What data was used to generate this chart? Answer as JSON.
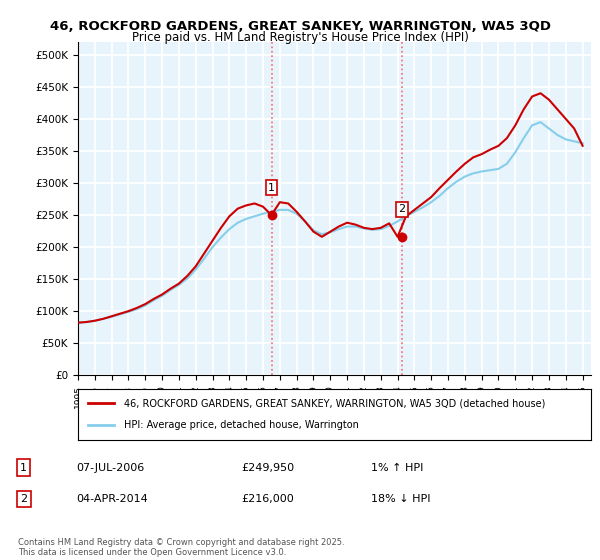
{
  "title": "46, ROCKFORD GARDENS, GREAT SANKEY, WARRINGTON, WA5 3QD",
  "subtitle": "Price paid vs. HM Land Registry's House Price Index (HPI)",
  "ylabel": "",
  "ylim": [
    0,
    520000
  ],
  "yticks": [
    0,
    50000,
    100000,
    150000,
    200000,
    250000,
    300000,
    350000,
    400000,
    450000,
    500000
  ],
  "ytick_labels": [
    "£0",
    "£50K",
    "£100K",
    "£150K",
    "£200K",
    "£250K",
    "£300K",
    "£350K",
    "£400K",
    "£450K",
    "£500K"
  ],
  "xlim_start": 1995.0,
  "xlim_end": 2025.5,
  "hpi_color": "#87CEEB",
  "price_color": "#CC0000",
  "background_color": "#E8F4FC",
  "grid_color": "#FFFFFF",
  "sale1_x": 2006.52,
  "sale1_y": 249950,
  "sale2_x": 2014.25,
  "sale2_y": 216000,
  "vline_color": "#FF6666",
  "legend_label_price": "46, ROCKFORD GARDENS, GREAT SANKEY, WARRINGTON, WA5 3QD (detached house)",
  "legend_label_hpi": "HPI: Average price, detached house, Warrington",
  "annotation1_label": "1",
  "annotation2_label": "2",
  "table_row1": "1    07-JUL-2006    £249,950    1% ↑ HPI",
  "table_row2": "2    04-APR-2014    £216,000    18% ↓ HPI",
  "footer": "Contains HM Land Registry data © Crown copyright and database right 2025.\nThis data is licensed under the Open Government Licence v3.0.",
  "hpi_data_x": [
    1995.0,
    1995.5,
    1996.0,
    1996.5,
    1997.0,
    1997.5,
    1998.0,
    1998.5,
    1999.0,
    1999.5,
    2000.0,
    2000.5,
    2001.0,
    2001.5,
    2002.0,
    2002.5,
    2003.0,
    2003.5,
    2004.0,
    2004.5,
    2005.0,
    2005.5,
    2006.0,
    2006.5,
    2007.0,
    2007.5,
    2008.0,
    2008.5,
    2009.0,
    2009.5,
    2010.0,
    2010.5,
    2011.0,
    2011.5,
    2012.0,
    2012.5,
    2013.0,
    2013.5,
    2014.0,
    2014.5,
    2015.0,
    2015.5,
    2016.0,
    2016.5,
    2017.0,
    2017.5,
    2018.0,
    2018.5,
    2019.0,
    2019.5,
    2020.0,
    2020.5,
    2021.0,
    2021.5,
    2022.0,
    2022.5,
    2023.0,
    2023.5,
    2024.0,
    2024.5,
    2025.0
  ],
  "hpi_data_y": [
    82000,
    83000,
    85000,
    88000,
    91000,
    95000,
    99000,
    103000,
    109000,
    117000,
    124000,
    133000,
    141000,
    151000,
    165000,
    182000,
    200000,
    215000,
    228000,
    238000,
    244000,
    248000,
    252000,
    255000,
    258000,
    258000,
    252000,
    240000,
    226000,
    220000,
    223000,
    228000,
    232000,
    232000,
    229000,
    227000,
    228000,
    233000,
    240000,
    248000,
    255000,
    262000,
    270000,
    280000,
    292000,
    302000,
    310000,
    315000,
    318000,
    320000,
    322000,
    330000,
    348000,
    370000,
    390000,
    395000,
    385000,
    375000,
    368000,
    365000,
    362000
  ],
  "price_data_x": [
    1995.0,
    1995.5,
    1996.0,
    1996.5,
    1997.0,
    1997.5,
    1998.0,
    1998.5,
    1999.0,
    1999.5,
    2000.0,
    2000.5,
    2001.0,
    2001.5,
    2002.0,
    2002.5,
    2003.0,
    2003.5,
    2004.0,
    2004.5,
    2005.0,
    2005.5,
    2006.0,
    2006.5,
    2007.0,
    2007.5,
    2008.0,
    2008.5,
    2009.0,
    2009.5,
    2010.0,
    2010.5,
    2011.0,
    2011.5,
    2012.0,
    2012.5,
    2013.0,
    2013.5,
    2014.0,
    2014.5,
    2015.0,
    2015.5,
    2016.0,
    2016.5,
    2017.0,
    2017.5,
    2018.0,
    2018.5,
    2019.0,
    2019.5,
    2020.0,
    2020.5,
    2021.0,
    2021.5,
    2022.0,
    2022.5,
    2023.0,
    2023.5,
    2024.0,
    2024.5,
    2025.0
  ],
  "price_data_y": [
    82000,
    83000,
    85000,
    88000,
    92000,
    96000,
    100000,
    105000,
    111000,
    119000,
    126000,
    135000,
    143000,
    155000,
    170000,
    190000,
    210000,
    230000,
    248000,
    260000,
    265000,
    268000,
    263000,
    250000,
    270000,
    268000,
    255000,
    240000,
    224000,
    216000,
    224000,
    232000,
    238000,
    235000,
    230000,
    228000,
    230000,
    237000,
    216000,
    248000,
    258000,
    268000,
    278000,
    292000,
    305000,
    318000,
    330000,
    340000,
    345000,
    352000,
    358000,
    370000,
    390000,
    415000,
    435000,
    440000,
    430000,
    415000,
    400000,
    385000,
    358000
  ]
}
